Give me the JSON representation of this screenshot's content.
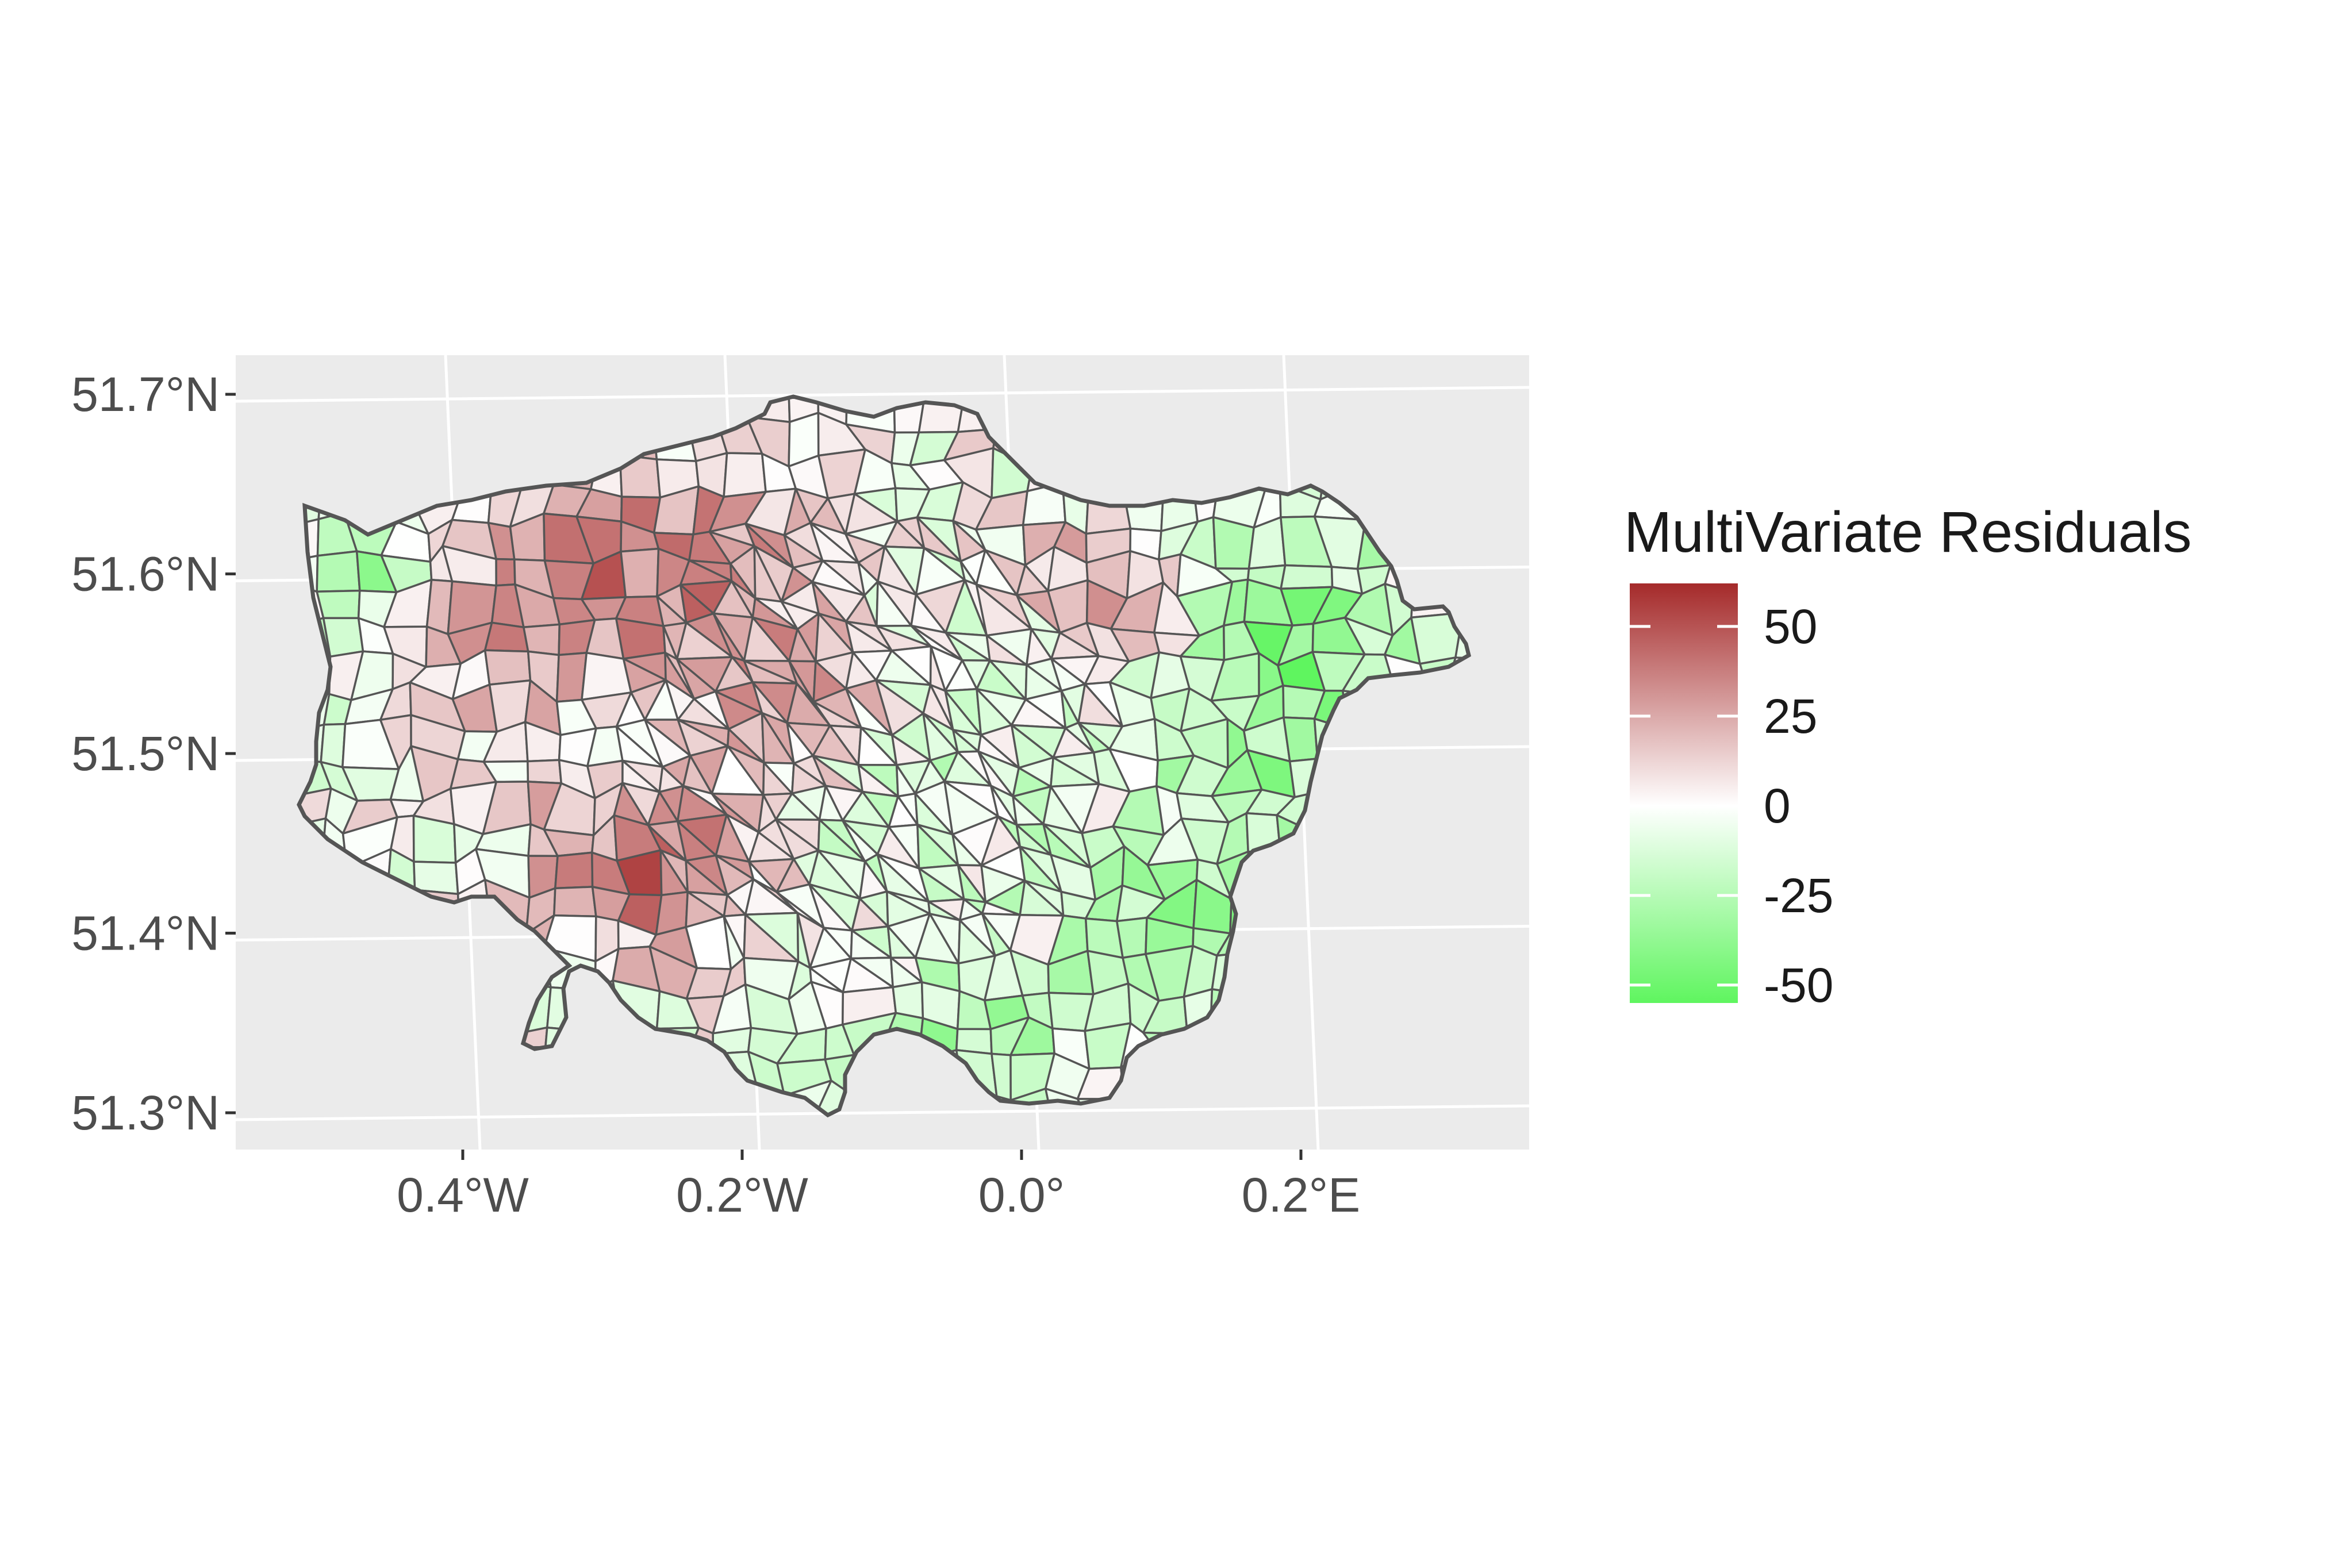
{
  "map": {
    "type": "choropleth",
    "region": "Greater London",
    "panel_background": "#ebebeb",
    "grid_color": "#ffffff",
    "boundary_color": "#555555",
    "x_axis": {
      "ticks": [
        {
          "value": -0.4,
          "label": "0.4°W"
        },
        {
          "value": -0.2,
          "label": "0.2°W"
        },
        {
          "value": 0.0,
          "label": "0.0°"
        },
        {
          "value": 0.2,
          "label": "0.2°E"
        }
      ]
    },
    "y_axis": {
      "ticks": [
        {
          "value": 51.3,
          "label": "51.3°N"
        },
        {
          "value": 51.4,
          "label": "51.4°N"
        },
        {
          "value": 51.5,
          "label": "51.5°N"
        },
        {
          "value": 51.6,
          "label": "51.6°N"
        },
        {
          "value": 51.7,
          "label": "51.7°N"
        }
      ]
    }
  },
  "legend": {
    "title": "MultiVariate Residuals",
    "ticks": [
      {
        "value": 50,
        "label": "50"
      },
      {
        "value": 25,
        "label": "25"
      },
      {
        "value": 0,
        "label": "0"
      },
      {
        "value": -25,
        "label": "-25"
      },
      {
        "value": -50,
        "label": "-50"
      }
    ],
    "range": [
      -55,
      62
    ],
    "low_color": "#5ff55f",
    "mid_color": "#ffffff",
    "high_color": "#a52a2a"
  }
}
